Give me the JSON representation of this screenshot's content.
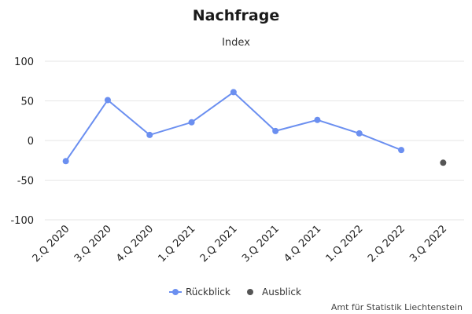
{
  "chart_data": {
    "type": "line",
    "title": "Nachfrage",
    "subtitle": "Index",
    "xlabel": "",
    "ylabel": "",
    "ylim": [
      -100,
      100
    ],
    "yticks": [
      100,
      50,
      0,
      -50,
      -100
    ],
    "grid": true,
    "legend_position": "bottom-center",
    "categories": [
      "2.Q 2020",
      "3.Q 2020",
      "4.Q 2020",
      "1.Q 2021",
      "2.Q 2021",
      "3.Q 2021",
      "4.Q 2021",
      "1.Q 2022",
      "2.Q 2022",
      "3.Q 2022"
    ],
    "series": [
      {
        "name": "Rückblick",
        "color": "#6b8ff0",
        "line": true,
        "values": [
          -26,
          51,
          7,
          23,
          61,
          12,
          26,
          9,
          -12,
          null
        ]
      },
      {
        "name": "Ausblick",
        "color": "#555555",
        "line": false,
        "values": [
          null,
          null,
          null,
          null,
          null,
          null,
          null,
          null,
          null,
          -28
        ]
      }
    ]
  },
  "credit": "Amt für Statistik Liechtenstein"
}
